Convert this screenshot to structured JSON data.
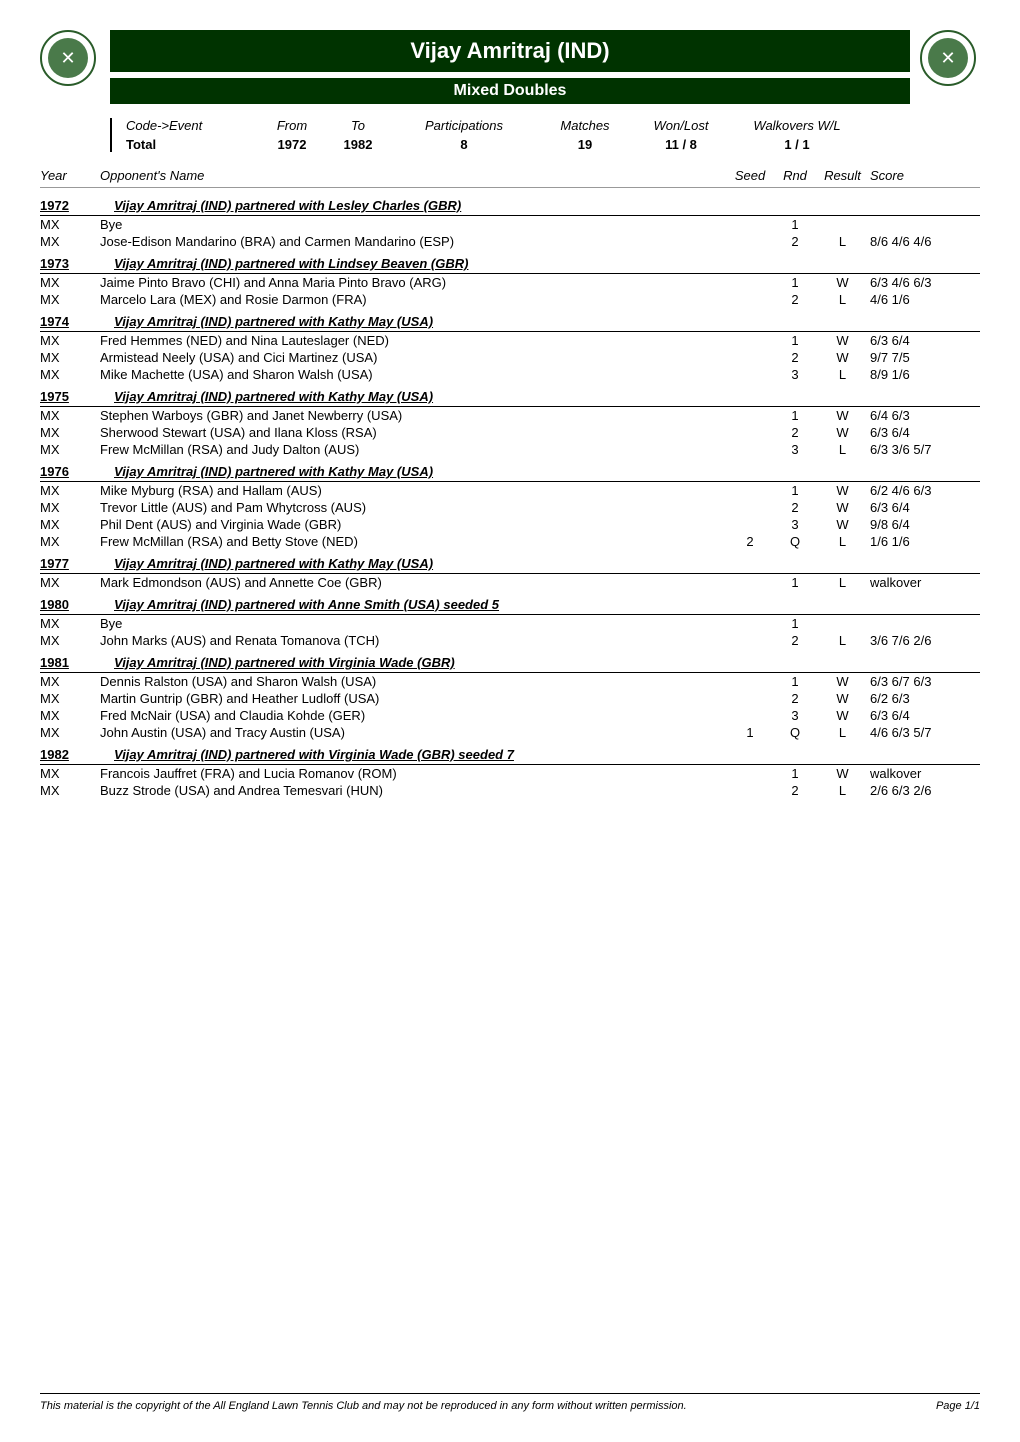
{
  "header": {
    "player_title": "Vijay Amritraj (IND)",
    "event_title": "Mixed Doubles"
  },
  "summary": {
    "labels": {
      "code_event": "Code->Event",
      "total": "Total",
      "from": "From",
      "to": "To",
      "participations": "Participations",
      "matches": "Matches",
      "won_lost": "Won/Lost",
      "walkovers": "Walkovers W/L"
    },
    "values": {
      "from": "1972",
      "to": "1982",
      "participations": "8",
      "matches": "19",
      "won_lost": "11 / 8",
      "walkovers": "1 / 1"
    }
  },
  "columns": {
    "year": "Year",
    "opponent": "Opponent's Name",
    "seed": "Seed",
    "rnd": "Rnd",
    "result": "Result",
    "score": "Score"
  },
  "years": [
    {
      "year": "1972",
      "partner": "Vijay Amritraj (IND) partnered with Lesley Charles (GBR)",
      "matches": [
        {
          "event": "MX",
          "opponent": "Bye",
          "seed": "",
          "rnd": "1",
          "result": "",
          "score": ""
        },
        {
          "event": "MX",
          "opponent": "Jose-Edison Mandarino (BRA) and  Carmen Mandarino (ESP)",
          "seed": "",
          "rnd": "2",
          "result": "L",
          "score": "8/6 4/6 4/6"
        }
      ]
    },
    {
      "year": "1973",
      "partner": "Vijay Amritraj (IND) partnered with Lindsey Beaven (GBR)",
      "matches": [
        {
          "event": "MX",
          "opponent": "Jaime Pinto Bravo (CHI) and  Anna Maria Pinto Bravo (ARG)",
          "seed": "",
          "rnd": "1",
          "result": "W",
          "score": "6/3 4/6 6/3"
        },
        {
          "event": "MX",
          "opponent": "Marcelo Lara (MEX) and  Rosie Darmon (FRA)",
          "seed": "",
          "rnd": "2",
          "result": "L",
          "score": "4/6 1/6"
        }
      ]
    },
    {
      "year": "1974",
      "partner": "Vijay Amritraj (IND) partnered with Kathy May (USA)",
      "matches": [
        {
          "event": "MX",
          "opponent": "Fred Hemmes (NED) and  Nina Lauteslager (NED)",
          "seed": "",
          "rnd": "1",
          "result": "W",
          "score": "6/3 6/4"
        },
        {
          "event": "MX",
          "opponent": "Armistead Neely (USA) and  Cici Martinez (USA)",
          "seed": "",
          "rnd": "2",
          "result": "W",
          "score": "9/7 7/5"
        },
        {
          "event": "MX",
          "opponent": "Mike Machette (USA) and  Sharon Walsh (USA)",
          "seed": "",
          "rnd": "3",
          "result": "L",
          "score": "8/9 1/6"
        }
      ]
    },
    {
      "year": "1975",
      "partner": "Vijay Amritraj (IND) partnered with Kathy May (USA)",
      "matches": [
        {
          "event": "MX",
          "opponent": "Stephen Warboys (GBR) and  Janet Newberry (USA)",
          "seed": "",
          "rnd": "1",
          "result": "W",
          "score": "6/4 6/3"
        },
        {
          "event": "MX",
          "opponent": "Sherwood Stewart (USA) and  Ilana Kloss (RSA)",
          "seed": "",
          "rnd": "2",
          "result": "W",
          "score": "6/3 6/4"
        },
        {
          "event": "MX",
          "opponent": "Frew McMillan (RSA) and  Judy Dalton (AUS)",
          "seed": "",
          "rnd": "3",
          "result": "L",
          "score": "6/3 3/6 5/7"
        }
      ]
    },
    {
      "year": "1976",
      "partner": "Vijay Amritraj (IND) partnered with Kathy May (USA)",
      "matches": [
        {
          "event": "MX",
          "opponent": "Mike Myburg (RSA) and   Hallam (AUS)",
          "seed": "",
          "rnd": "1",
          "result": "W",
          "score": "6/2 4/6 6/3"
        },
        {
          "event": "MX",
          "opponent": "Trevor Little (AUS) and  Pam Whytcross (AUS)",
          "seed": "",
          "rnd": "2",
          "result": "W",
          "score": "6/3 6/4"
        },
        {
          "event": "MX",
          "opponent": "Phil Dent (AUS) and  Virginia Wade (GBR)",
          "seed": "",
          "rnd": "3",
          "result": "W",
          "score": "9/8 6/4"
        },
        {
          "event": "MX",
          "opponent": "Frew McMillan (RSA) and  Betty Stove (NED)",
          "seed": "2",
          "rnd": "Q",
          "result": "L",
          "score": "1/6 1/6"
        }
      ]
    },
    {
      "year": "1977",
      "partner": "Vijay Amritraj (IND) partnered with Kathy May (USA)",
      "matches": [
        {
          "event": "MX",
          "opponent": "Mark Edmondson (AUS) and  Annette Coe (GBR)",
          "seed": "",
          "rnd": "1",
          "result": "L",
          "score": "walkover"
        }
      ]
    },
    {
      "year": "1980",
      "partner": "Vijay Amritraj (IND) partnered with Anne Smith (USA) seeded 5",
      "matches": [
        {
          "event": "MX",
          "opponent": "Bye",
          "seed": "",
          "rnd": "1",
          "result": "",
          "score": ""
        },
        {
          "event": "MX",
          "opponent": "John Marks (AUS) and  Renata Tomanova (TCH)",
          "seed": "",
          "rnd": "2",
          "result": "L",
          "score": "3/6 7/6 2/6"
        }
      ]
    },
    {
      "year": "1981",
      "partner": "Vijay Amritraj (IND) partnered with Virginia Wade (GBR)",
      "matches": [
        {
          "event": "MX",
          "opponent": "Dennis Ralston (USA) and  Sharon Walsh (USA)",
          "seed": "",
          "rnd": "1",
          "result": "W",
          "score": "6/3 6/7 6/3"
        },
        {
          "event": "MX",
          "opponent": "Martin Guntrip (GBR) and  Heather Ludloff (USA)",
          "seed": "",
          "rnd": "2",
          "result": "W",
          "score": "6/2 6/3"
        },
        {
          "event": "MX",
          "opponent": "Fred McNair (USA) and  Claudia Kohde (GER)",
          "seed": "",
          "rnd": "3",
          "result": "W",
          "score": "6/3 6/4"
        },
        {
          "event": "MX",
          "opponent": "John Austin (USA) and  Tracy Austin (USA)",
          "seed": "1",
          "rnd": "Q",
          "result": "L",
          "score": "4/6 6/3 5/7"
        }
      ]
    },
    {
      "year": "1982",
      "partner": "Vijay Amritraj (IND) partnered with Virginia Wade (GBR) seeded 7",
      "matches": [
        {
          "event": "MX",
          "opponent": "Francois Jauffret (FRA) and  Lucia Romanov (ROM)",
          "seed": "",
          "rnd": "1",
          "result": "W",
          "score": "walkover"
        },
        {
          "event": "MX",
          "opponent": "Buzz Strode (USA) and  Andrea Temesvari (HUN)",
          "seed": "",
          "rnd": "2",
          "result": "L",
          "score": "2/6 6/3 2/6"
        }
      ]
    }
  ],
  "footer": {
    "copyright": "This material is the copyright of the All England Lawn Tennis Club and may not be reproduced in any form without written permission.",
    "page": "Page 1/1"
  }
}
